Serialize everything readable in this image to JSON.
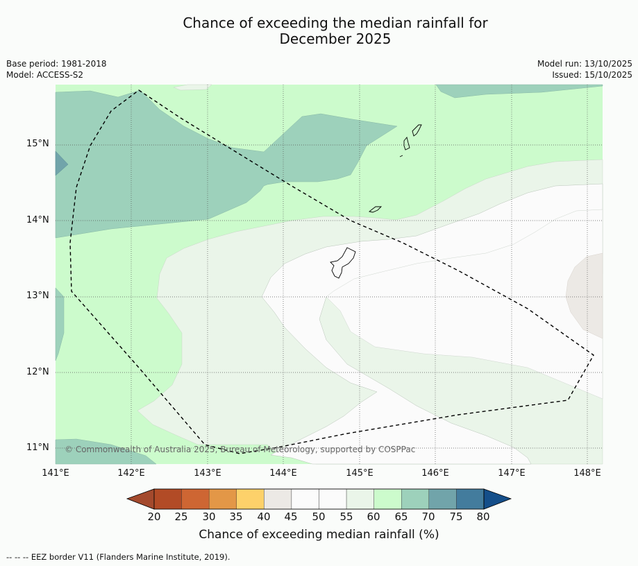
{
  "title": {
    "line1": "Chance of exceeding the median rainfall for",
    "line2": "December 2025"
  },
  "meta": {
    "base_period": "Base period: 1981-2018",
    "model": "Model: ACCESS-S2",
    "model_run": "Model run: 13/10/2025",
    "issued": "Issued: 15/10/2025"
  },
  "map": {
    "latitude_labels": [
      "15°N",
      "14°N",
      "13°N",
      "12°N",
      "11°N"
    ],
    "longitude_labels": [
      "141°E",
      "142°E",
      "143°E",
      "144°E",
      "145°E",
      "146°E",
      "147°E",
      "148°E"
    ],
    "copyright": "© Commonwealth of Australia 2025, Bureau of Meteorology, supported by COSPPac"
  },
  "colorbar": {
    "ticks": [
      "20",
      "25",
      "30",
      "35",
      "40",
      "45",
      "50",
      "55",
      "60",
      "65",
      "70",
      "75",
      "80"
    ],
    "colors": [
      "#b24b26",
      "#ce6633",
      "#e39747",
      "#fdd16a",
      "#ece9e5",
      "#fbfbfb",
      "#fbfbfb",
      "#eaf5e9",
      "#ccfbcc",
      "#9dd1bb",
      "#71a4aa",
      "#437c9d"
    ],
    "under_color": "#a44a2d",
    "over_color": "#154f8a",
    "label": "Chance of exceeding median rainfall (%)"
  },
  "footnote": "--  --  -- EEZ border V11 (Flanders Marine Institute, 2019)."
}
